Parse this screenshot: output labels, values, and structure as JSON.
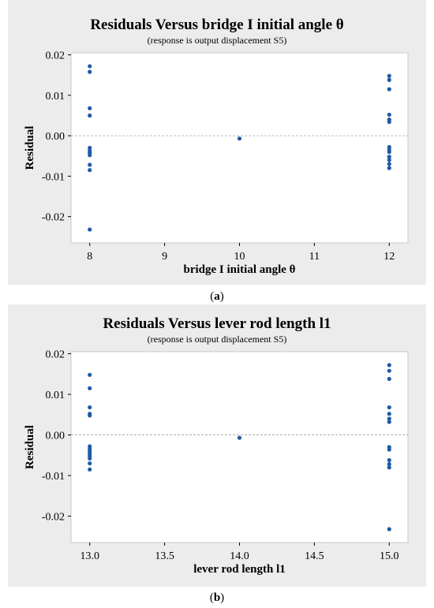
{
  "chart_data": [
    {
      "type": "scatter",
      "title": "Residuals Versus bridge I initial angle θ",
      "subtitle": "(response is output displacement S5)",
      "xlabel": "bridge I initial angle θ",
      "ylabel": "Residual",
      "xlim": [
        7.75,
        12.25
      ],
      "ylim": [
        -0.0265,
        0.0205
      ],
      "xticks": [
        8,
        9,
        10,
        11,
        12
      ],
      "xtick_labels": [
        "8",
        "9",
        "10",
        "11",
        "12"
      ],
      "yticks": [
        0.02,
        0.01,
        0.0,
        -0.01,
        -0.02
      ],
      "ytick_labels": [
        "0.02",
        "0.01",
        "0.00",
        "-0.01",
        "-0.02"
      ],
      "reference_line": 0.0,
      "grid": false,
      "color": "#1f5aa6",
      "points": [
        [
          8,
          0.0172
        ],
        [
          8,
          0.0158
        ],
        [
          8,
          0.0068
        ],
        [
          8,
          0.005
        ],
        [
          8,
          -0.003
        ],
        [
          8,
          -0.0037
        ],
        [
          8,
          -0.0042
        ],
        [
          8,
          -0.0048
        ],
        [
          8,
          -0.0072
        ],
        [
          8,
          -0.0085
        ],
        [
          8,
          -0.0232
        ],
        [
          10,
          -0.0007
        ],
        [
          12,
          0.0148
        ],
        [
          12,
          0.0138
        ],
        [
          12,
          0.0115
        ],
        [
          12,
          0.0052
        ],
        [
          12,
          0.004
        ],
        [
          12,
          0.0034
        ],
        [
          12,
          -0.0028
        ],
        [
          12,
          -0.0034
        ],
        [
          12,
          -0.004
        ],
        [
          12,
          -0.0052
        ],
        [
          12,
          -0.006
        ],
        [
          12,
          -0.007
        ],
        [
          12,
          -0.008
        ]
      ],
      "caption": "a"
    },
    {
      "type": "scatter",
      "title": "Residuals Versus lever rod length l1",
      "subtitle": "(response is output displacement S5)",
      "xlabel": "lever rod length l1",
      "ylabel": "Residual",
      "xlim": [
        12.875,
        15.125
      ],
      "ylim": [
        -0.0265,
        0.0205
      ],
      "xticks": [
        13.0,
        13.5,
        14.0,
        14.5,
        15.0
      ],
      "xtick_labels": [
        "13.0",
        "13.5",
        "14.0",
        "14.5",
        "15.0"
      ],
      "yticks": [
        0.02,
        0.01,
        0.0,
        -0.01,
        -0.02
      ],
      "ytick_labels": [
        "0.02",
        "0.01",
        "0.00",
        "-0.01",
        "-0.02"
      ],
      "reference_line": 0.0,
      "grid": false,
      "color": "#1f5aa6",
      "points": [
        [
          13,
          0.0148
        ],
        [
          13,
          0.0115
        ],
        [
          13,
          0.0068
        ],
        [
          13,
          0.0052
        ],
        [
          13,
          0.0048
        ],
        [
          13,
          -0.0028
        ],
        [
          13,
          -0.0034
        ],
        [
          13,
          -0.004
        ],
        [
          13,
          -0.0046
        ],
        [
          13,
          -0.0052
        ],
        [
          13,
          -0.0058
        ],
        [
          13,
          -0.007
        ],
        [
          13,
          -0.0085
        ],
        [
          14,
          -0.0007
        ],
        [
          15,
          0.0172
        ],
        [
          15,
          0.0158
        ],
        [
          15,
          0.0138
        ],
        [
          15,
          0.0068
        ],
        [
          15,
          0.0052
        ],
        [
          15,
          0.004
        ],
        [
          15,
          0.0032
        ],
        [
          15,
          -0.003
        ],
        [
          15,
          -0.0036
        ],
        [
          15,
          -0.0062
        ],
        [
          15,
          -0.0072
        ],
        [
          15,
          -0.008
        ],
        [
          15,
          -0.0232
        ]
      ],
      "caption": "b"
    }
  ]
}
